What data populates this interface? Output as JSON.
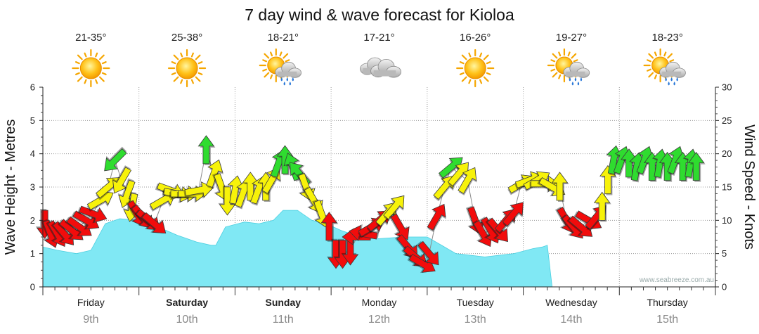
{
  "chart_data": {
    "type": "area+arrows",
    "title": "7 day wind & wave forecast for Kioloa",
    "y_left": {
      "label": "Wave Height - Metres",
      "range": [
        0,
        6
      ],
      "ticks": [
        "0",
        "1",
        "2",
        "3",
        "4",
        "5",
        "6"
      ]
    },
    "y_right": {
      "label": "Wind Speed - Knots",
      "range": [
        0,
        30
      ],
      "ticks": [
        "0",
        "5",
        "10",
        "15",
        "20",
        "25",
        "30"
      ]
    },
    "days": [
      {
        "name": "Friday",
        "date": "9th",
        "temp": "21-35°",
        "weather": "sunny",
        "bold": false
      },
      {
        "name": "Saturday",
        "date": "10th",
        "temp": "25-38°",
        "weather": "sunny",
        "bold": true
      },
      {
        "name": "Sunday",
        "date": "11th",
        "temp": "18-21°",
        "weather": "showers",
        "bold": true
      },
      {
        "name": "Monday",
        "date": "12th",
        "temp": "17-21°",
        "weather": "cloudy",
        "bold": false
      },
      {
        "name": "Tuesday",
        "date": "13th",
        "temp": "16-26°",
        "weather": "sunny",
        "bold": false
      },
      {
        "name": "Wednesday",
        "date": "14th",
        "temp": "19-27°",
        "weather": "rain",
        "bold": false
      },
      {
        "name": "Thursday",
        "date": "15th",
        "temp": "18-23°",
        "weather": "rain",
        "bold": false
      }
    ],
    "wave_height_m": {
      "t": [
        0,
        0.15,
        0.35,
        0.5,
        0.65,
        0.8,
        1.0,
        1.2,
        1.4,
        1.6,
        1.75,
        1.8,
        1.9,
        2.1,
        2.25,
        2.4,
        2.5,
        2.65,
        2.8,
        2.95,
        3.1,
        3.3,
        3.5,
        3.75,
        4.0,
        4.3,
        4.6,
        4.9,
        5.1,
        5.2,
        5.25,
        5.3
      ],
      "values": [
        1.2,
        1.1,
        1.0,
        1.1,
        1.9,
        2.05,
        2.0,
        1.8,
        1.55,
        1.35,
        1.25,
        1.25,
        1.8,
        1.95,
        1.9,
        2.0,
        2.3,
        2.3,
        2.0,
        1.9,
        1.7,
        1.5,
        1.45,
        1.5,
        1.5,
        1.0,
        0.9,
        1.0,
        1.15,
        1.2,
        1.25,
        0.0
      ]
    },
    "wind": [
      {
        "t": 0.02,
        "kts": 9.5,
        "dir": 180,
        "color": "red"
      },
      {
        "t": 0.08,
        "kts": 8,
        "dir": 160,
        "color": "red"
      },
      {
        "t": 0.15,
        "kts": 8,
        "dir": 150,
        "color": "red"
      },
      {
        "t": 0.22,
        "kts": 8,
        "dir": 140,
        "color": "red"
      },
      {
        "t": 0.3,
        "kts": 8.5,
        "dir": 130,
        "color": "red"
      },
      {
        "t": 0.38,
        "kts": 9,
        "dir": 125,
        "color": "red"
      },
      {
        "t": 0.45,
        "kts": 10,
        "dir": 120,
        "color": "red"
      },
      {
        "t": 0.52,
        "kts": 11,
        "dir": 110,
        "color": "red"
      },
      {
        "t": 0.6,
        "kts": 13,
        "dir": 60,
        "color": "yellow"
      },
      {
        "t": 0.68,
        "kts": 15,
        "dir": 50,
        "color": "yellow"
      },
      {
        "t": 0.75,
        "kts": 19,
        "dir": 225,
        "color": "green"
      },
      {
        "t": 0.82,
        "kts": 16,
        "dir": 210,
        "color": "yellow"
      },
      {
        "t": 0.88,
        "kts": 14,
        "dir": 200,
        "color": "yellow"
      },
      {
        "t": 0.93,
        "kts": 12,
        "dir": 190,
        "color": "yellow"
      },
      {
        "t": 0.98,
        "kts": 11,
        "dir": 150,
        "color": "red"
      },
      {
        "t": 1.04,
        "kts": 10.5,
        "dir": 140,
        "color": "red"
      },
      {
        "t": 1.1,
        "kts": 10,
        "dir": 130,
        "color": "red"
      },
      {
        "t": 1.16,
        "kts": 9.5,
        "dir": 130,
        "color": "red"
      },
      {
        "t": 1.25,
        "kts": 13,
        "dir": 60,
        "color": "yellow"
      },
      {
        "t": 1.33,
        "kts": 14.5,
        "dir": 110,
        "color": "yellow"
      },
      {
        "t": 1.4,
        "kts": 14,
        "dir": 100,
        "color": "yellow"
      },
      {
        "t": 1.47,
        "kts": 14,
        "dir": 90,
        "color": "yellow"
      },
      {
        "t": 1.55,
        "kts": 14,
        "dir": 90,
        "color": "yellow"
      },
      {
        "t": 1.62,
        "kts": 14.5,
        "dir": 80,
        "color": "yellow"
      },
      {
        "t": 1.7,
        "kts": 20.5,
        "dir": 0,
        "color": "green"
      },
      {
        "t": 1.78,
        "kts": 17,
        "dir": 20,
        "color": "yellow"
      },
      {
        "t": 1.86,
        "kts": 15,
        "dir": 160,
        "color": "yellow"
      },
      {
        "t": 1.92,
        "kts": 13,
        "dir": 180,
        "color": "yellow"
      },
      {
        "t": 2.0,
        "kts": 14.5,
        "dir": 10,
        "color": "yellow"
      },
      {
        "t": 2.08,
        "kts": 14,
        "dir": 20,
        "color": "yellow"
      },
      {
        "t": 2.16,
        "kts": 15,
        "dir": 0,
        "color": "yellow"
      },
      {
        "t": 2.24,
        "kts": 14.5,
        "dir": 20,
        "color": "yellow"
      },
      {
        "t": 2.32,
        "kts": 15,
        "dir": 0,
        "color": "yellow"
      },
      {
        "t": 2.38,
        "kts": 16,
        "dir": 30,
        "color": "yellow"
      },
      {
        "t": 2.45,
        "kts": 18.5,
        "dir": 20,
        "color": "green"
      },
      {
        "t": 2.52,
        "kts": 19,
        "dir": 0,
        "color": "green"
      },
      {
        "t": 2.6,
        "kts": 18,
        "dir": 340,
        "color": "green"
      },
      {
        "t": 2.67,
        "kts": 17,
        "dir": 320,
        "color": "green"
      },
      {
        "t": 2.74,
        "kts": 15,
        "dir": 160,
        "color": "yellow"
      },
      {
        "t": 2.82,
        "kts": 13,
        "dir": 150,
        "color": "yellow"
      },
      {
        "t": 2.9,
        "kts": 11,
        "dir": 160,
        "color": "yellow"
      },
      {
        "t": 2.98,
        "kts": 9,
        "dir": 0,
        "color": "red"
      },
      {
        "t": 3.05,
        "kts": 5,
        "dir": 180,
        "color": "red"
      },
      {
        "t": 3.12,
        "kts": 5,
        "dir": 180,
        "color": "red"
      },
      {
        "t": 3.2,
        "kts": 5.5,
        "dir": 180,
        "color": "red"
      },
      {
        "t": 3.27,
        "kts": 7.5,
        "dir": 270,
        "color": "red"
      },
      {
        "t": 3.34,
        "kts": 8,
        "dir": 280,
        "color": "red"
      },
      {
        "t": 3.42,
        "kts": 9,
        "dir": 60,
        "color": "red"
      },
      {
        "t": 3.5,
        "kts": 10,
        "dir": 50,
        "color": "red"
      },
      {
        "t": 3.58,
        "kts": 11,
        "dir": 40,
        "color": "yellow"
      },
      {
        "t": 3.66,
        "kts": 12,
        "dir": 40,
        "color": "yellow"
      },
      {
        "t": 3.72,
        "kts": 9,
        "dir": 150,
        "color": "red"
      },
      {
        "t": 3.8,
        "kts": 6,
        "dir": 140,
        "color": "red"
      },
      {
        "t": 3.88,
        "kts": 4.5,
        "dir": 130,
        "color": "red"
      },
      {
        "t": 3.95,
        "kts": 3.5,
        "dir": 120,
        "color": "red"
      },
      {
        "t": 4.02,
        "kts": 5,
        "dir": 140,
        "color": "red"
      },
      {
        "t": 4.1,
        "kts": 10.5,
        "dir": 30,
        "color": "red"
      },
      {
        "t": 4.18,
        "kts": 15,
        "dir": 40,
        "color": "yellow"
      },
      {
        "t": 4.25,
        "kts": 18,
        "dir": 50,
        "color": "green"
      },
      {
        "t": 4.33,
        "kts": 17,
        "dir": 40,
        "color": "yellow"
      },
      {
        "t": 4.42,
        "kts": 16,
        "dir": 30,
        "color": "yellow"
      },
      {
        "t": 4.5,
        "kts": 10,
        "dir": 160,
        "color": "red"
      },
      {
        "t": 4.58,
        "kts": 8,
        "dir": 150,
        "color": "red"
      },
      {
        "t": 4.66,
        "kts": 8.5,
        "dir": 150,
        "color": "red"
      },
      {
        "t": 4.74,
        "kts": 8.5,
        "dir": 140,
        "color": "red"
      },
      {
        "t": 4.82,
        "kts": 10,
        "dir": 40,
        "color": "red"
      },
      {
        "t": 4.9,
        "kts": 11,
        "dir": 40,
        "color": "red"
      },
      {
        "t": 4.98,
        "kts": 15.5,
        "dir": 60,
        "color": "yellow"
      },
      {
        "t": 5.06,
        "kts": 16,
        "dir": 70,
        "color": "yellow"
      },
      {
        "t": 5.14,
        "kts": 16,
        "dir": 60,
        "color": "yellow"
      },
      {
        "t": 5.22,
        "kts": 15.5,
        "dir": 90,
        "color": "yellow"
      },
      {
        "t": 5.3,
        "kts": 15,
        "dir": 120,
        "color": "yellow"
      },
      {
        "t": 5.38,
        "kts": 15,
        "dir": 0,
        "color": "yellow"
      },
      {
        "t": 5.45,
        "kts": 10,
        "dir": 150,
        "color": "red"
      },
      {
        "t": 5.52,
        "kts": 9,
        "dir": 140,
        "color": "red"
      },
      {
        "t": 5.6,
        "kts": 9,
        "dir": 130,
        "color": "red"
      },
      {
        "t": 5.68,
        "kts": 10,
        "dir": 120,
        "color": "red"
      },
      {
        "t": 5.76,
        "kts": 10.5,
        "dir": 40,
        "color": "red"
      },
      {
        "t": 5.82,
        "kts": 12,
        "dir": 0,
        "color": "yellow"
      },
      {
        "t": 5.88,
        "kts": 16,
        "dir": 0,
        "color": "yellow"
      },
      {
        "t": 5.94,
        "kts": 19,
        "dir": 10,
        "color": "green"
      },
      {
        "t": 6.02,
        "kts": 19,
        "dir": 20,
        "color": "green"
      },
      {
        "t": 6.1,
        "kts": 18.5,
        "dir": 0,
        "color": "green"
      },
      {
        "t": 6.18,
        "kts": 18,
        "dir": 10,
        "color": "green"
      },
      {
        "t": 6.26,
        "kts": 19,
        "dir": 20,
        "color": "green"
      },
      {
        "t": 6.34,
        "kts": 18,
        "dir": 0,
        "color": "green"
      },
      {
        "t": 6.42,
        "kts": 18.5,
        "dir": 10,
        "color": "green"
      },
      {
        "t": 6.5,
        "kts": 18,
        "dir": 0,
        "color": "green"
      },
      {
        "t": 6.58,
        "kts": 19,
        "dir": 20,
        "color": "green"
      },
      {
        "t": 6.66,
        "kts": 18,
        "dir": 0,
        "color": "green"
      },
      {
        "t": 6.74,
        "kts": 18.5,
        "dir": 10,
        "color": "green"
      },
      {
        "t": 6.8,
        "kts": 18,
        "dir": 0,
        "color": "green"
      }
    ],
    "colors": {
      "wave": "#80e8f4",
      "red": "#f20c0c",
      "yellow": "#f7f20a",
      "green": "#2fdc2f",
      "grid": "#9a9a9a"
    },
    "watermark": "www.seabreeze.com.au",
    "grid": true
  }
}
